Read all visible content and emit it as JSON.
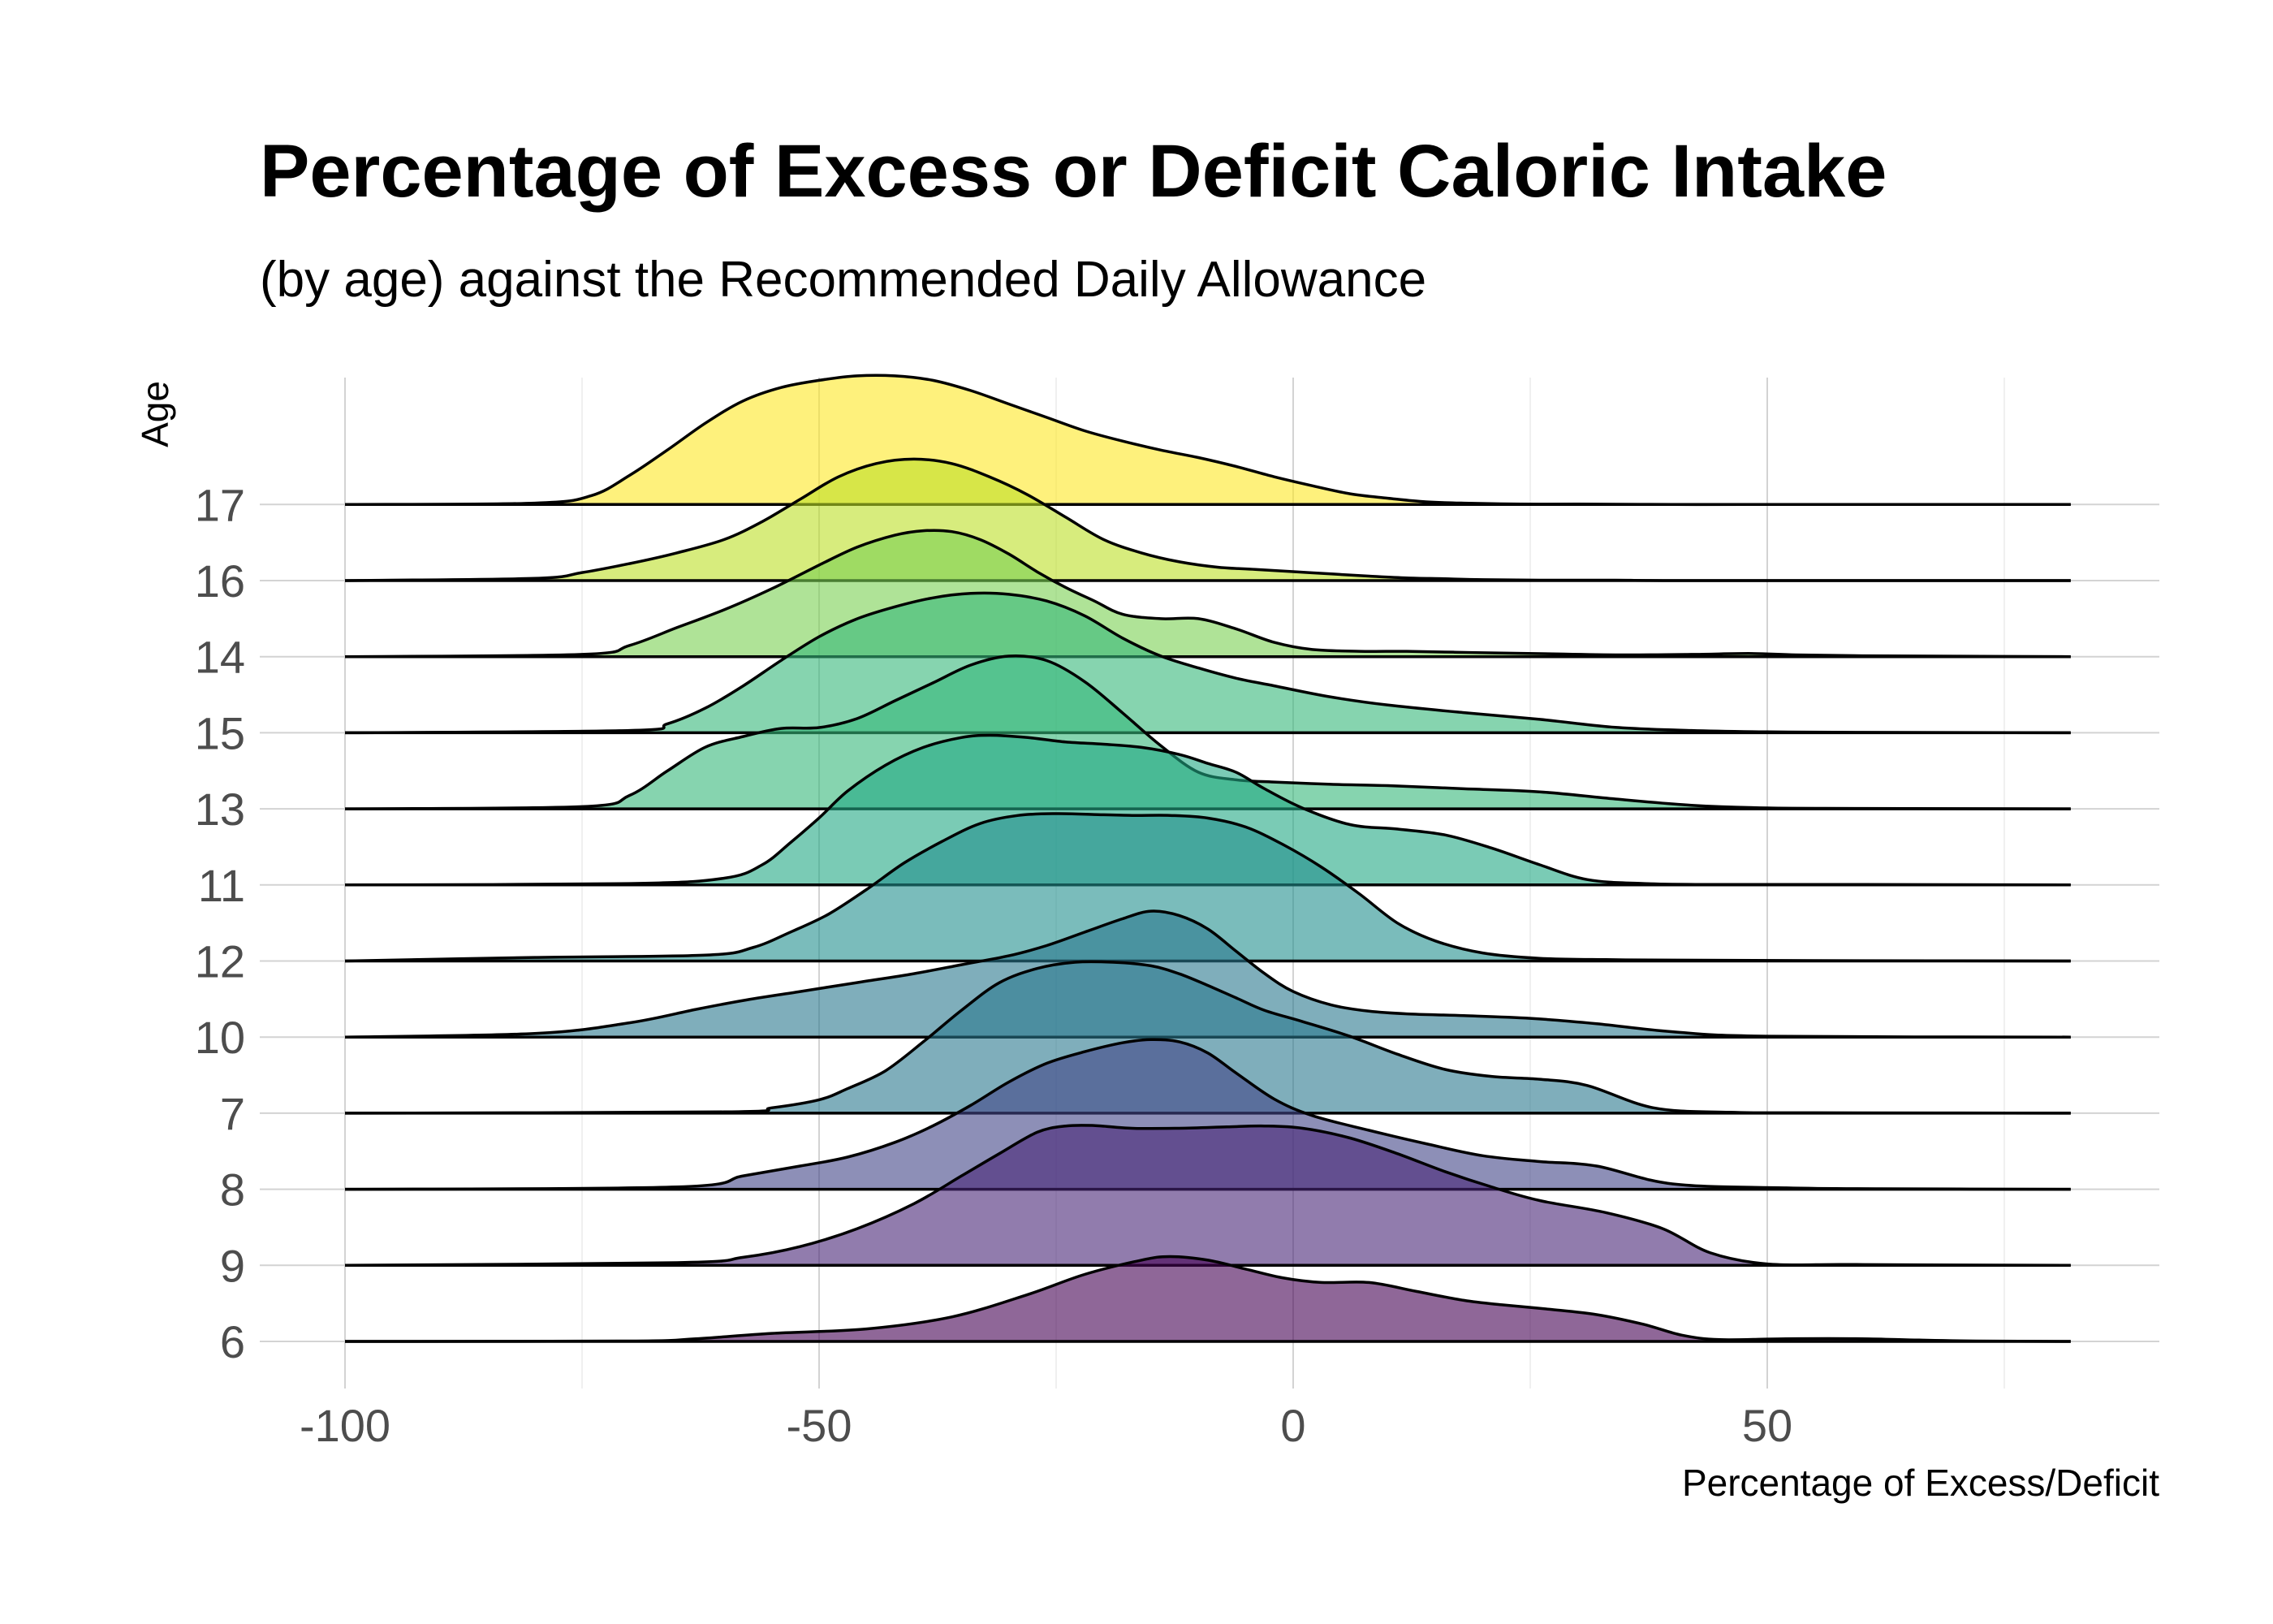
{
  "chart_data": {
    "type": "ridgeline",
    "title": "Percentage of Excess or Deficit Caloric Intake",
    "subtitle": "(by age) against the Recommended Daily Allowance",
    "xlabel": "Percentage of Excess/Deficit",
    "ylabel": "Age",
    "xlim": [
      -100,
      82
    ],
    "x_ticks": [
      "-100",
      "-50",
      "0",
      "50"
    ],
    "x_tick_values": [
      -100,
      -50,
      0,
      50
    ],
    "grid": true,
    "legend": "none",
    "categories": [
      "6",
      "9",
      "8",
      "7",
      "10",
      "12",
      "11",
      "13",
      "15",
      "14",
      "16",
      "17"
    ],
    "series": [
      {
        "category": "6",
        "color": "#440154",
        "x": [
          -100,
          -70,
          -63,
          -55,
          -45,
          -36,
          -28,
          -22,
          -16,
          -13,
          -9,
          -5,
          -1,
          3,
          8,
          13,
          18,
          22,
          27,
          32,
          37,
          41,
          45,
          52,
          60,
          66,
          72,
          82
        ],
        "density": [
          0,
          0.01,
          0.06,
          0.18,
          0.28,
          0.55,
          1.05,
          1.5,
          1.82,
          1.9,
          1.82,
          1.62,
          1.42,
          1.32,
          1.32,
          1.12,
          0.92,
          0.82,
          0.72,
          0.6,
          0.38,
          0.14,
          0.04,
          0.06,
          0.06,
          0.03,
          0.01,
          0
        ]
      },
      {
        "category": "9",
        "color": "#482576",
        "x": [
          -100,
          -65,
          -58,
          -52,
          -46,
          -40,
          -35,
          -31,
          -27,
          -24,
          -21,
          -17,
          -12,
          -7,
          -3,
          1,
          6,
          11,
          16,
          21,
          26,
          33,
          39,
          44,
          50,
          58,
          67,
          82
        ],
        "density": [
          0,
          0.06,
          0.18,
          0.42,
          0.82,
          1.38,
          2.0,
          2.5,
          2.98,
          3.12,
          3.13,
          3.07,
          3.07,
          3.1,
          3.12,
          3.07,
          2.85,
          2.5,
          2.1,
          1.75,
          1.45,
          1.18,
          0.82,
          0.28,
          0.03,
          0.02,
          0.01,
          0
        ]
      },
      {
        "category": "8",
        "color": "#414487",
        "x": [
          -100,
          -65,
          -58,
          -52,
          -47,
          -42,
          -38,
          -34,
          -30,
          -26,
          -22,
          -18,
          -15,
          -12,
          -9,
          -6,
          -2,
          2,
          8,
          14,
          20,
          26,
          32,
          40,
          52,
          62,
          82
        ],
        "density": [
          0,
          0.05,
          0.3,
          0.52,
          0.72,
          1.05,
          1.42,
          1.88,
          2.4,
          2.82,
          3.08,
          3.28,
          3.35,
          3.3,
          3.05,
          2.6,
          2.02,
          1.65,
          1.32,
          1.02,
          0.75,
          0.62,
          0.52,
          0.12,
          0.03,
          0.01,
          0
        ]
      },
      {
        "category": "7",
        "color": "#2a788e",
        "x": [
          -100,
          -60,
          -55,
          -50,
          -47,
          -43,
          -39,
          -35,
          -31,
          -27,
          -23,
          -19,
          -15,
          -12,
          -9,
          -6,
          -3,
          1,
          6,
          11,
          16,
          21,
          26,
          31,
          38,
          46,
          55,
          82
        ],
        "density": [
          0,
          0.03,
          0.12,
          0.3,
          0.55,
          0.95,
          1.6,
          2.3,
          2.92,
          3.24,
          3.38,
          3.38,
          3.3,
          3.12,
          2.86,
          2.58,
          2.3,
          2.05,
          1.72,
          1.32,
          0.98,
          0.82,
          0.76,
          0.62,
          0.12,
          0.02,
          0.01,
          0
        ]
      },
      {
        "category": "10",
        "color": "#2a788e",
        "x": [
          -100,
          -80,
          -70,
          -63,
          -58,
          -52,
          -46,
          -40,
          -35,
          -30,
          -26,
          -22,
          -18,
          -15,
          -12,
          -9,
          -6,
          -3,
          0,
          4,
          8,
          12,
          18,
          25,
          32,
          40,
          50,
          82
        ],
        "density": [
          0,
          0.08,
          0.32,
          0.62,
          0.82,
          1.02,
          1.22,
          1.42,
          1.62,
          1.82,
          2.05,
          2.35,
          2.65,
          2.82,
          2.72,
          2.42,
          1.92,
          1.42,
          1.02,
          0.72,
          0.58,
          0.52,
          0.48,
          0.42,
          0.3,
          0.12,
          0.02,
          0
        ]
      },
      {
        "category": "12",
        "color": "#21908d",
        "x": [
          -100,
          -80,
          -62,
          -57,
          -53,
          -49,
          -45,
          -41,
          -37,
          -33,
          -29,
          -25,
          -21,
          -17,
          -13,
          -9,
          -5,
          -1,
          3,
          7,
          11,
          15,
          20,
          26,
          33,
          40,
          55,
          82
        ],
        "density": [
          0,
          0.08,
          0.13,
          0.3,
          0.65,
          1.05,
          1.6,
          2.2,
          2.68,
          3.08,
          3.26,
          3.3,
          3.28,
          3.26,
          3.26,
          3.2,
          3.0,
          2.6,
          2.1,
          1.5,
          0.85,
          0.45,
          0.18,
          0.06,
          0.03,
          0.02,
          0.01,
          0
        ]
      },
      {
        "category": "11",
        "color": "#22a884",
        "x": [
          -100,
          -70,
          -60,
          -56,
          -53,
          -50,
          -47,
          -43,
          -39,
          -35,
          -32,
          -28,
          -24,
          -20,
          -16,
          -12,
          -9,
          -6,
          -3,
          1,
          6,
          11,
          16,
          21,
          26,
          31,
          37,
          45,
          60,
          82
        ],
        "density": [
          0,
          0.03,
          0.15,
          0.45,
          0.95,
          1.5,
          2.1,
          2.68,
          3.08,
          3.3,
          3.35,
          3.3,
          3.2,
          3.15,
          3.08,
          2.92,
          2.72,
          2.52,
          2.15,
          1.72,
          1.35,
          1.25,
          1.12,
          0.82,
          0.45,
          0.12,
          0.03,
          0.01,
          0.01,
          0
        ]
      },
      {
        "category": "13",
        "color": "#35b779",
        "x": [
          -100,
          -75,
          -70,
          -66,
          -62,
          -58,
          -54,
          -50,
          -46,
          -42,
          -38,
          -34,
          -30,
          -26,
          -22,
          -18,
          -14,
          -10,
          -6,
          -2,
          4,
          10,
          18,
          26,
          34,
          42,
          50,
          60,
          82
        ],
        "density": [
          0,
          0.05,
          0.3,
          0.85,
          1.38,
          1.62,
          1.8,
          1.82,
          2.02,
          2.42,
          2.82,
          3.22,
          3.42,
          3.32,
          2.85,
          2.15,
          1.42,
          0.82,
          0.65,
          0.6,
          0.55,
          0.52,
          0.45,
          0.38,
          0.22,
          0.08,
          0.02,
          0.01,
          0
        ]
      },
      {
        "category": "15",
        "color": "#35b779",
        "x": [
          -100,
          -70,
          -66,
          -62,
          -58,
          -54,
          -50,
          -46,
          -42,
          -38,
          -34,
          -30,
          -26,
          -22,
          -18,
          -14,
          -10,
          -6,
          -2,
          4,
          10,
          18,
          26,
          34,
          42,
          50,
          60,
          82
        ],
        "density": [
          0,
          0.05,
          0.2,
          0.55,
          1.05,
          1.62,
          2.15,
          2.55,
          2.82,
          3.02,
          3.12,
          3.1,
          2.95,
          2.62,
          2.12,
          1.72,
          1.45,
          1.22,
          1.05,
          0.8,
          0.62,
          0.45,
          0.3,
          0.12,
          0.05,
          0.02,
          0.01,
          0
        ]
      },
      {
        "category": "14",
        "color": "#7ad151",
        "x": [
          -100,
          -75,
          -70,
          -65,
          -60,
          -55,
          -50,
          -46,
          -42,
          -39,
          -36,
          -33,
          -30,
          -27,
          -24,
          -21,
          -18,
          -14,
          -10,
          -6,
          -2,
          2,
          7,
          12,
          17,
          22,
          28,
          35,
          42,
          48,
          53,
          60,
          70,
          82
        ],
        "density": [
          0,
          0.05,
          0.25,
          0.65,
          1.05,
          1.52,
          2.05,
          2.45,
          2.72,
          2.82,
          2.8,
          2.62,
          2.3,
          1.9,
          1.55,
          1.25,
          0.95,
          0.85,
          0.85,
          0.62,
          0.32,
          0.16,
          0.12,
          0.12,
          0.1,
          0.08,
          0.06,
          0.04,
          0.05,
          0.07,
          0.04,
          0.02,
          0.01,
          0
        ]
      },
      {
        "category": "16",
        "color": "#bddf26",
        "x": [
          -100,
          -80,
          -75,
          -70,
          -65,
          -60,
          -56,
          -52,
          -48,
          -44,
          -40,
          -36,
          -32,
          -28,
          -24,
          -20,
          -16,
          -12,
          -8,
          -4,
          0,
          4,
          8,
          12,
          16,
          20,
          26,
          34,
          42,
          82
        ],
        "density": [
          0,
          0.05,
          0.18,
          0.38,
          0.62,
          0.92,
          1.32,
          1.82,
          2.32,
          2.62,
          2.72,
          2.62,
          2.32,
          1.92,
          1.42,
          0.92,
          0.62,
          0.42,
          0.3,
          0.25,
          0.2,
          0.15,
          0.1,
          0.06,
          0.04,
          0.02,
          0.01,
          0.01,
          0,
          0
        ]
      },
      {
        "category": "17",
        "color": "#fde725",
        "x": [
          -100,
          -80,
          -74,
          -70,
          -66,
          -62,
          -58,
          -54,
          -50,
          -46,
          -42,
          -38,
          -34,
          -30,
          -26,
          -22,
          -18,
          -14,
          -10,
          -6,
          -2,
          2,
          6,
          10,
          14,
          18,
          24,
          30,
          40,
          50,
          82
        ],
        "density": [
          0,
          0.03,
          0.2,
          0.65,
          1.22,
          1.82,
          2.32,
          2.62,
          2.78,
          2.88,
          2.88,
          2.78,
          2.55,
          2.25,
          1.95,
          1.65,
          1.42,
          1.22,
          1.05,
          0.85,
          0.62,
          0.42,
          0.24,
          0.14,
          0.06,
          0.03,
          0.01,
          0.01,
          0,
          0,
          0
        ]
      }
    ]
  }
}
